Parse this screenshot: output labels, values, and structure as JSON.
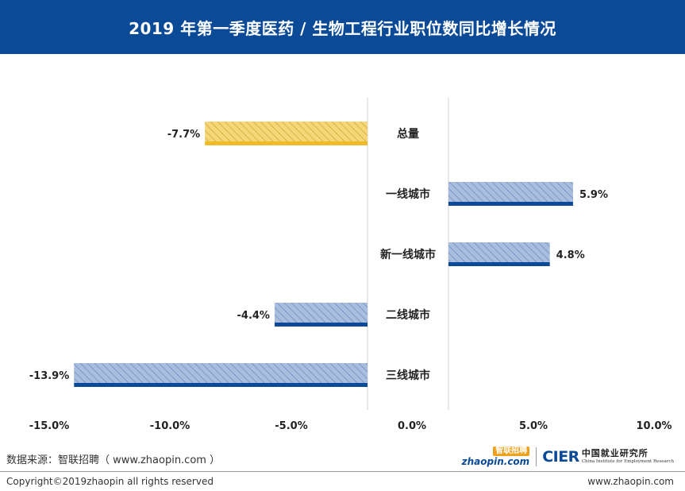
{
  "header": {
    "title": "2019 年第一季度医药 / 生物工程行业职位数同比增长情况"
  },
  "chart_data": {
    "type": "bar",
    "orientation": "horizontal",
    "categories": [
      "总量",
      "一线城市",
      "新一线城市",
      "二线城市",
      "三线城市"
    ],
    "values": [
      -7.7,
      5.9,
      4.8,
      -4.4,
      -13.9
    ],
    "value_labels": [
      "-7.7%",
      "5.9%",
      "4.8%",
      "-4.4%",
      "-13.9%"
    ],
    "highlight_category": "总量",
    "x_ticks": [
      -15.0,
      -10.0,
      -5.0,
      0.0,
      5.0,
      10.0
    ],
    "x_tick_labels": [
      "-15.0%",
      "-10.0%",
      "-5.0%",
      "0.0%",
      "5.0%",
      "10.0%"
    ],
    "xlim": [
      -15.0,
      10.0
    ],
    "grid": false,
    "legend": "none",
    "colors": {
      "highlight_fill": "#f5d77a",
      "highlight_hatch": "#d8b445",
      "highlight_base": "#efbb2a",
      "fill": "#a9bedf",
      "hatch": "#7d98c6",
      "base": "#0b4a97"
    }
  },
  "source": {
    "text": "数据来源：智联招聘（ www.zhaopin.com ）"
  },
  "logos": {
    "zhaopin_top": "智联招聘",
    "zhaopin_bottom": "zhaopin.com",
    "cier_mark": "CIER",
    "cier_cn": "中国就业研究所",
    "cier_en": "China Institute for Employment Research"
  },
  "footer": {
    "copyright": "Copyright©2019zhaopin all rights reserved",
    "url": "www.zhaopin.com"
  },
  "colors": {
    "header_bg": "#0b4a97"
  }
}
